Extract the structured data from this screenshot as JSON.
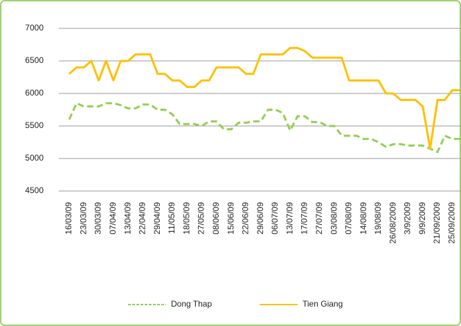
{
  "chart_data": {
    "type": "line",
    "categories": [
      "16/03/09",
      null,
      "23/03/09",
      null,
      "30/03/09",
      null,
      "07/04/09",
      null,
      "13/04/09",
      null,
      "22/04/09",
      null,
      "29/04/09",
      null,
      "11/05/09",
      null,
      "18/05/09",
      null,
      "27/05/09",
      null,
      "08/06/09",
      null,
      "15/06/09",
      null,
      "22/06/09",
      null,
      "29/06/09",
      null,
      "06/07/09",
      null,
      "13/07/09",
      null,
      "17/07/09",
      null,
      "27/07/09",
      null,
      "03/08/09",
      null,
      "07/08/09",
      null,
      "14/08/09",
      null,
      "19/08/09",
      null,
      "26/08/2009",
      null,
      "3/9/2009",
      null,
      "9/9/2009",
      null,
      "21/09/2009",
      null,
      "25/09/2009",
      null
    ],
    "series": [
      {
        "name": "Dong Thap",
        "color": "#92d050",
        "dashed": true,
        "values": [
          5600,
          5850,
          5800,
          5800,
          5800,
          5850,
          5850,
          5820,
          5770,
          5770,
          5830,
          5830,
          5750,
          5750,
          5680,
          5530,
          5530,
          5530,
          5500,
          5570,
          5570,
          5450,
          5450,
          5550,
          5550,
          5570,
          5570,
          5750,
          5750,
          5700,
          5430,
          5650,
          5650,
          5560,
          5560,
          5500,
          5500,
          5350,
          5350,
          5350,
          5300,
          5300,
          5250,
          5180,
          5220,
          5220,
          5200,
          5200,
          5200,
          5150,
          5100,
          5350,
          5300,
          5300
        ]
      },
      {
        "name": "Tien Giang",
        "color": "#ffc000",
        "dashed": false,
        "values": [
          6300,
          6400,
          6400,
          6500,
          6200,
          6500,
          6200,
          6500,
          6500,
          6600,
          6600,
          6600,
          6300,
          6300,
          6200,
          6200,
          6100,
          6100,
          6200,
          6200,
          6400,
          6400,
          6400,
          6400,
          6300,
          6300,
          6600,
          6600,
          6600,
          6600,
          6700,
          6700,
          6650,
          6550,
          6550,
          6550,
          6550,
          6550,
          6200,
          6200,
          6200,
          6200,
          6200,
          6000,
          6000,
          5900,
          5900,
          5900,
          5800,
          5150,
          5900,
          5900,
          6050,
          6050
        ]
      }
    ],
    "ylim": [
      4500,
      7000
    ],
    "yticks": [
      4500,
      5000,
      5500,
      6000,
      6500,
      7000
    ],
    "grid": true,
    "legend": "bottom"
  }
}
